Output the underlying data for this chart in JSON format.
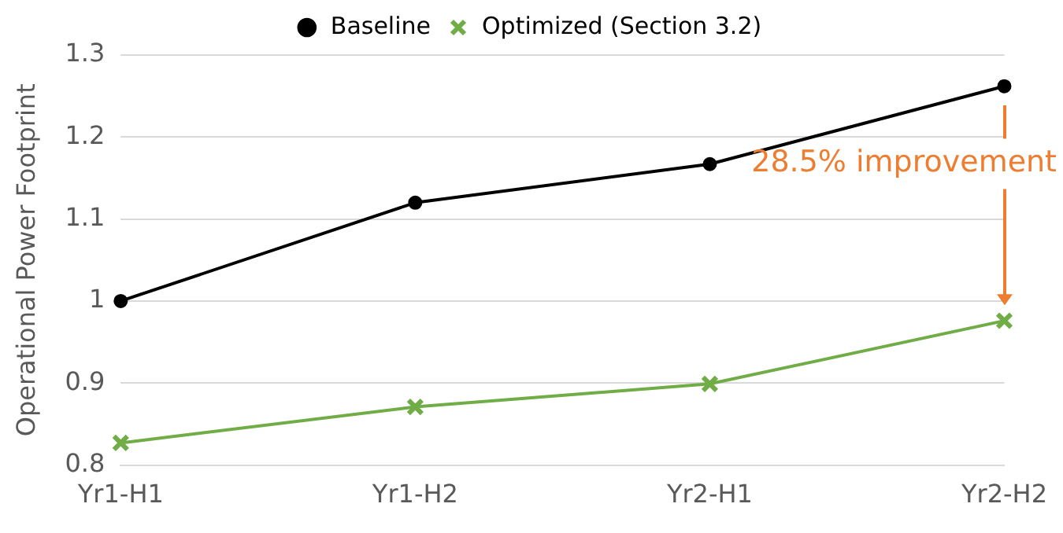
{
  "chart_data": {
    "type": "line",
    "ylabel": "Operational Power Footprint",
    "categories": [
      "Yr1-H1",
      "Yr1-H2",
      "Yr2-H1",
      "Yr2-H2"
    ],
    "series": [
      {
        "name": "Baseline",
        "color": "#000000",
        "marker": "circle",
        "values": [
          1.0,
          1.12,
          1.167,
          1.262
        ]
      },
      {
        "name": "Optimized (Section 3.2)",
        "color": "#70ad47",
        "marker": "cross",
        "values": [
          0.827,
          0.871,
          0.899,
          0.976
        ]
      }
    ],
    "ylim": [
      0.8,
      1.3
    ],
    "yticks": [
      0.8,
      0.9,
      1,
      1.1,
      1.2,
      1.3
    ],
    "grid": "y",
    "legend": "top",
    "line_style": "solid",
    "annotations": [
      "28.5% improvement"
    ]
  }
}
